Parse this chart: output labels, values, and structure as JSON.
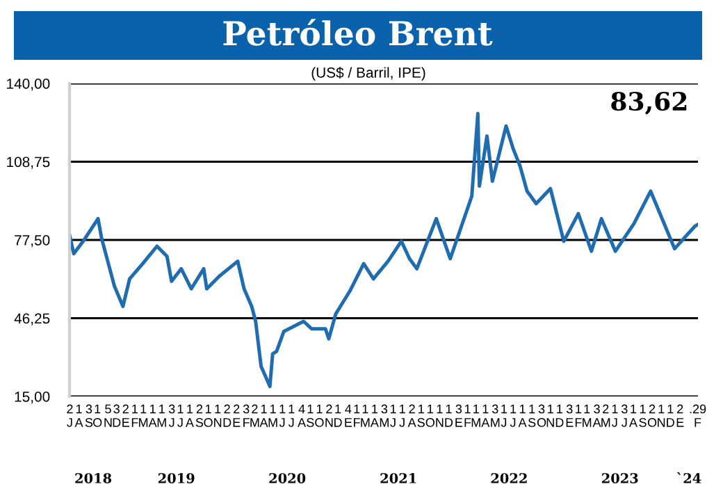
{
  "chart_data": {
    "type": "line",
    "title": "Petróleo Brent",
    "subtitle": "(US$ / Barril, IPE)",
    "annotations": [
      "83,62",
      "2018",
      "2019",
      "2020",
      "2021",
      "2022",
      "2023",
      "`24"
    ],
    "x": [
      "2018-07-02",
      "2018-07-15",
      "2018-08-15",
      "2018-10-03",
      "2018-10-15",
      "2018-11-26",
      "2018-12-24",
      "2019-01-15",
      "2019-02-27",
      "2019-04-15",
      "2019-05-18",
      "2019-06-02",
      "2019-07-04",
      "2019-08-06",
      "2019-09-16",
      "2019-09-26",
      "2019-11-06",
      "2020-01-06",
      "2020-01-27",
      "2020-02-21",
      "2020-03-05",
      "2020-03-23",
      "2020-04-21",
      "2020-04-30",
      "2020-05-13",
      "2020-06-06",
      "2020-08-10",
      "2020-09-06",
      "2020-10-21",
      "2020-11-01",
      "2020-11-24",
      "2021-01-09",
      "2021-02-24",
      "2021-03-28",
      "2021-05-15",
      "2021-06-28",
      "2021-07-25",
      "2021-08-18",
      "2021-10-21",
      "2021-12-06",
      "2022-02-15",
      "2022-03-07",
      "2022-03-12",
      "2022-04-06",
      "2022-04-24",
      "2022-06-08",
      "2022-07-01",
      "2022-07-24",
      "2022-08-16",
      "2022-09-15",
      "2022-11-01",
      "2022-12-15",
      "2023-02-01",
      "2023-03-16",
      "2023-04-18",
      "2023-06-03",
      "2023-08-03",
      "2023-09-27",
      "2023-10-28",
      "2023-12-15",
      "2024-01-21",
      "2024-02-20",
      "2024-02-29"
    ],
    "series": [
      {
        "color": "#1f6cb0",
        "values": [
          79,
          72,
          77,
          86,
          78,
          59,
          51,
          62,
          68,
          75,
          71,
          61,
          66,
          58,
          66,
          58,
          63,
          69,
          58,
          51,
          45,
          27,
          19,
          32,
          33,
          41,
          45,
          42,
          42,
          38,
          48,
          57,
          68,
          62,
          69,
          77,
          70,
          66,
          86,
          70,
          95,
          128,
          99,
          119,
          101,
          123,
          114,
          107,
          97,
          92,
          98,
          77,
          88,
          73,
          86,
          73,
          84,
          97,
          88,
          74,
          79,
          83,
          83.62
        ]
      }
    ],
    "ylim": [
      15,
      140
    ],
    "yticks": [
      {
        "value": 15,
        "label": "15,00"
      },
      {
        "value": 46.25,
        "label": "46,25"
      },
      {
        "value": 77.5,
        "label": "77,50"
      },
      {
        "value": 108.75,
        "label": "108,75"
      },
      {
        "value": 140,
        "label": "140,00"
      }
    ],
    "xlim": [
      "2018-07-01",
      "2024-03-01"
    ],
    "xticks": [
      {
        "value": "2018-07-02",
        "label": "2\nJ"
      },
      {
        "value": "2018-08-01",
        "label": "1\nA"
      },
      {
        "value": "2018-09-03",
        "label": "3\nS"
      },
      {
        "value": "2018-10-01",
        "label": "1\nO"
      },
      {
        "value": "2018-11-05",
        "label": "5\nN"
      },
      {
        "value": "2018-12-03",
        "label": "3\nD"
      },
      {
        "value": "2019-01-02",
        "label": "2\nE"
      },
      {
        "value": "2019-02-01",
        "label": "1\nF"
      },
      {
        "value": "2019-03-01",
        "label": "1\nM"
      },
      {
        "value": "2019-04-01",
        "label": "1\nA"
      },
      {
        "value": "2019-05-01",
        "label": "1\nM"
      },
      {
        "value": "2019-06-03",
        "label": "3\nJ"
      },
      {
        "value": "2019-07-01",
        "label": "1\nJ"
      },
      {
        "value": "2019-08-01",
        "label": "1\nA"
      },
      {
        "value": "2019-09-02",
        "label": "2\nS"
      },
      {
        "value": "2019-10-01",
        "label": "1\nO"
      },
      {
        "value": "2019-11-01",
        "label": "1\nN"
      },
      {
        "value": "2019-12-02",
        "label": "2\nD"
      },
      {
        "value": "2020-01-02",
        "label": "2\nE"
      },
      {
        "value": "2020-02-03",
        "label": "3\nF"
      },
      {
        "value": "2020-03-02",
        "label": "2\nM"
      },
      {
        "value": "2020-04-01",
        "label": "1\nA"
      },
      {
        "value": "2020-05-01",
        "label": "1\nM"
      },
      {
        "value": "2020-06-01",
        "label": "1\nJ"
      },
      {
        "value": "2020-07-01",
        "label": "1\nJ"
      },
      {
        "value": "2020-08-04",
        "label": "4\nA"
      },
      {
        "value": "2020-09-01",
        "label": "1\nS"
      },
      {
        "value": "2020-10-01",
        "label": "1\nO"
      },
      {
        "value": "2020-11-02",
        "label": "2\nN"
      },
      {
        "value": "2020-12-01",
        "label": "1\nD"
      },
      {
        "value": "2021-01-04",
        "label": "4\nE"
      },
      {
        "value": "2021-02-01",
        "label": "1\nF"
      },
      {
        "value": "2021-03-01",
        "label": "1\nM"
      },
      {
        "value": "2021-04-01",
        "label": "1\nA"
      },
      {
        "value": "2021-05-03",
        "label": "3\nM"
      },
      {
        "value": "2021-06-01",
        "label": "1\nJ"
      },
      {
        "value": "2021-07-01",
        "label": "1\nJ"
      },
      {
        "value": "2021-08-02",
        "label": "2\nA"
      },
      {
        "value": "2021-09-01",
        "label": "1\nS"
      },
      {
        "value": "2021-10-01",
        "label": "1\nO"
      },
      {
        "value": "2021-11-01",
        "label": "1\nN"
      },
      {
        "value": "2021-12-01",
        "label": "1\nD"
      },
      {
        "value": "2022-01-03",
        "label": "3\nE"
      },
      {
        "value": "2022-02-01",
        "label": "1\nF"
      },
      {
        "value": "2022-03-01",
        "label": "1\nM"
      },
      {
        "value": "2022-04-01",
        "label": "1\nA"
      },
      {
        "value": "2022-05-03",
        "label": "3\nM"
      },
      {
        "value": "2022-06-01",
        "label": "1\nJ"
      },
      {
        "value": "2022-07-01",
        "label": "1\nJ"
      },
      {
        "value": "2022-08-01",
        "label": "1\nA"
      },
      {
        "value": "2022-09-01",
        "label": "1\nS"
      },
      {
        "value": "2022-10-03",
        "label": "3\nO"
      },
      {
        "value": "2022-11-01",
        "label": "1\nN"
      },
      {
        "value": "2022-12-01",
        "label": "1\nD"
      },
      {
        "value": "2023-01-03",
        "label": "3\nE"
      },
      {
        "value": "2023-02-01",
        "label": "1\nF"
      },
      {
        "value": "2023-03-01",
        "label": "1\nM"
      },
      {
        "value": "2023-04-03",
        "label": "3\nA"
      },
      {
        "value": "2023-05-02",
        "label": "2\nM"
      },
      {
        "value": "2023-06-01",
        "label": "1\nJ"
      },
      {
        "value": "2023-07-03",
        "label": "3\nJ"
      },
      {
        "value": "2023-08-01",
        "label": "1\nA"
      },
      {
        "value": "2023-09-01",
        "label": "1\nS"
      },
      {
        "value": "2023-10-02",
        "label": "2\nO"
      },
      {
        "value": "2023-11-01",
        "label": "1\nN"
      },
      {
        "value": "2023-12-01",
        "label": "1\nD"
      },
      {
        "value": "2024-01-02",
        "label": "2\nE"
      },
      {
        "value": "2024-02-29",
        "label": ".29\nF"
      }
    ],
    "grid": "y",
    "legend": false,
    "marker": "none",
    "line_style": "solid"
  }
}
